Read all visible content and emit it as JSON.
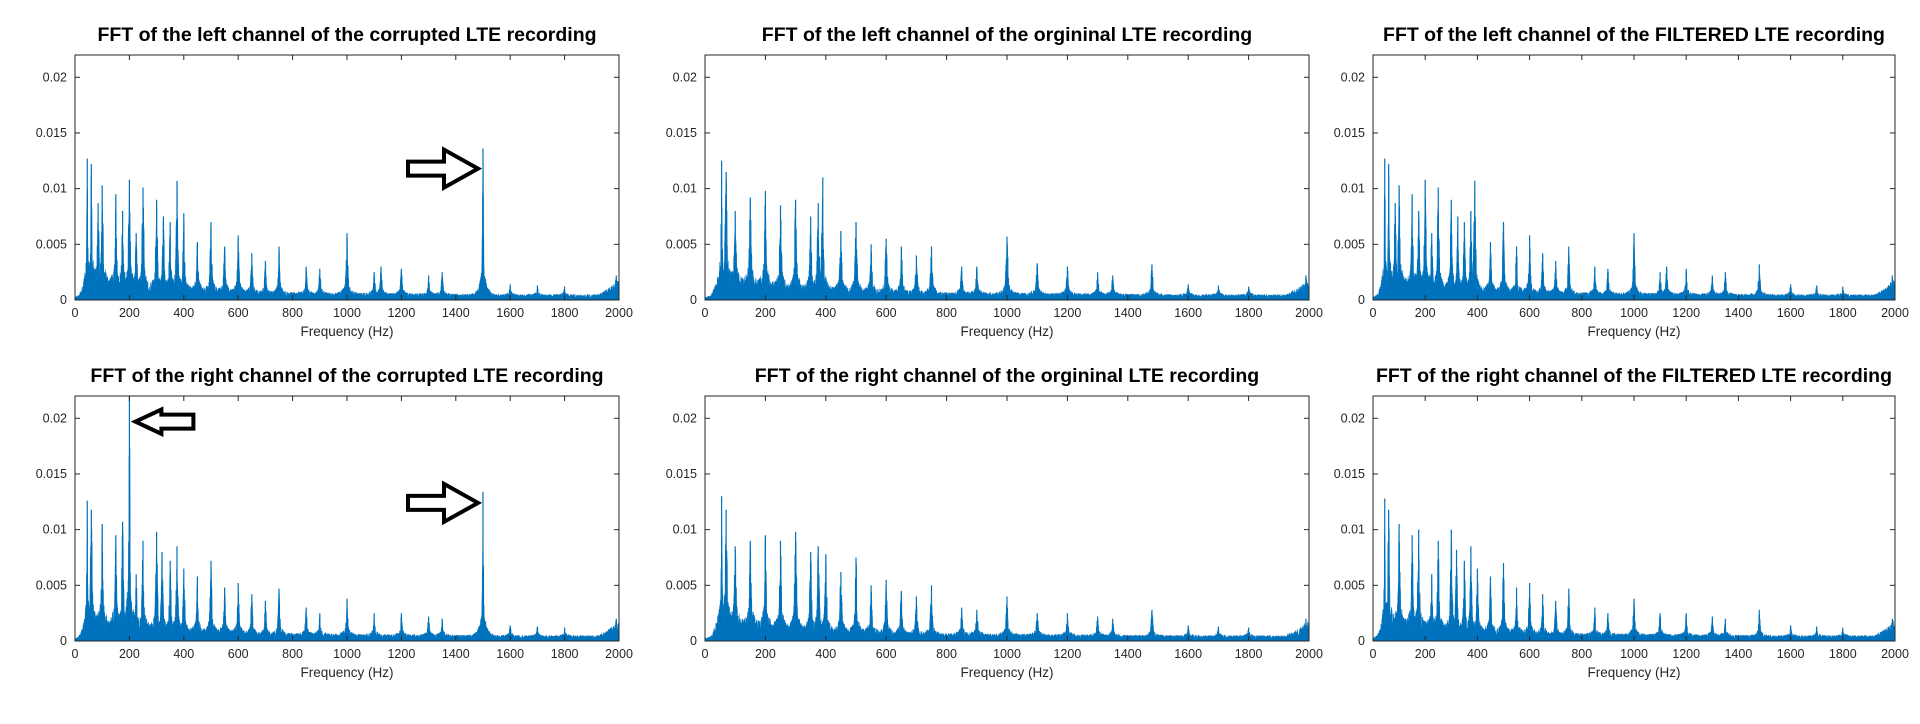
{
  "figure": {
    "background": "#ffffff",
    "series_color": "#0072BD",
    "axis_color": "#262626",
    "arrow_fill": "#ffffff",
    "arrow_stroke": "#000000"
  },
  "chart_data": [
    {
      "id": "left-corrupted",
      "type": "area",
      "title": "FFT of the left channel of the corrupted LTE recording",
      "xlabel": "Frequency (Hz)",
      "ylabel": "",
      "xlim": [
        0,
        2000
      ],
      "ylim": [
        0,
        0.022
      ],
      "xticks": [
        "0",
        "200",
        "400",
        "600",
        "800",
        "1000",
        "1200",
        "1400",
        "1600",
        "1800",
        "2000"
      ],
      "yticks": [
        "0",
        "0.005",
        "0.01",
        "0.015",
        "0.02"
      ],
      "grid": false,
      "annotations": [
        {
          "kind": "arrow",
          "direction": "right",
          "points_to_hz": 1500,
          "at_value": 0.0118
        }
      ],
      "peaks": [
        {
          "hz": 45,
          "value": 0.0127
        },
        {
          "hz": 60,
          "value": 0.0122
        },
        {
          "hz": 85,
          "value": 0.0087
        },
        {
          "hz": 100,
          "value": 0.0103
        },
        {
          "hz": 150,
          "value": 0.0095
        },
        {
          "hz": 175,
          "value": 0.008
        },
        {
          "hz": 200,
          "value": 0.0108
        },
        {
          "hz": 225,
          "value": 0.006
        },
        {
          "hz": 250,
          "value": 0.0101
        },
        {
          "hz": 300,
          "value": 0.009
        },
        {
          "hz": 325,
          "value": 0.0075
        },
        {
          "hz": 350,
          "value": 0.007
        },
        {
          "hz": 375,
          "value": 0.0107
        },
        {
          "hz": 400,
          "value": 0.0078
        },
        {
          "hz": 450,
          "value": 0.0052
        },
        {
          "hz": 500,
          "value": 0.007
        },
        {
          "hz": 550,
          "value": 0.0048
        },
        {
          "hz": 600,
          "value": 0.0058
        },
        {
          "hz": 650,
          "value": 0.0042
        },
        {
          "hz": 700,
          "value": 0.0035
        },
        {
          "hz": 750,
          "value": 0.0048
        },
        {
          "hz": 850,
          "value": 0.003
        },
        {
          "hz": 900,
          "value": 0.0028
        },
        {
          "hz": 1000,
          "value": 0.006
        },
        {
          "hz": 1100,
          "value": 0.0025
        },
        {
          "hz": 1125,
          "value": 0.003
        },
        {
          "hz": 1200,
          "value": 0.0028
        },
        {
          "hz": 1300,
          "value": 0.0022
        },
        {
          "hz": 1350,
          "value": 0.0025
        },
        {
          "hz": 1500,
          "value": 0.0136
        },
        {
          "hz": 1600,
          "value": 0.0014
        },
        {
          "hz": 1700,
          "value": 0.0013
        },
        {
          "hz": 1800,
          "value": 0.0012
        },
        {
          "hz": 1990,
          "value": 0.0022
        }
      ]
    },
    {
      "id": "left-original",
      "type": "area",
      "title": "FFT of the left channel of the orgininal LTE recording",
      "xlabel": "Frequency (Hz)",
      "ylabel": "",
      "xlim": [
        0,
        2000
      ],
      "ylim": [
        0,
        0.022
      ],
      "xticks": [
        "0",
        "200",
        "400",
        "600",
        "800",
        "1000",
        "1200",
        "1400",
        "1600",
        "1800",
        "2000"
      ],
      "yticks": [
        "0",
        "0.005",
        "0.01",
        "0.015",
        "0.02"
      ],
      "grid": false,
      "annotations": [],
      "peaks": [
        {
          "hz": 55,
          "value": 0.0125
        },
        {
          "hz": 70,
          "value": 0.0115
        },
        {
          "hz": 100,
          "value": 0.008
        },
        {
          "hz": 150,
          "value": 0.0092
        },
        {
          "hz": 200,
          "value": 0.0098
        },
        {
          "hz": 250,
          "value": 0.0085
        },
        {
          "hz": 300,
          "value": 0.009
        },
        {
          "hz": 350,
          "value": 0.0075
        },
        {
          "hz": 375,
          "value": 0.0087
        },
        {
          "hz": 390,
          "value": 0.011
        },
        {
          "hz": 450,
          "value": 0.0062
        },
        {
          "hz": 500,
          "value": 0.007
        },
        {
          "hz": 550,
          "value": 0.005
        },
        {
          "hz": 600,
          "value": 0.0055
        },
        {
          "hz": 650,
          "value": 0.0048
        },
        {
          "hz": 700,
          "value": 0.004
        },
        {
          "hz": 750,
          "value": 0.0048
        },
        {
          "hz": 850,
          "value": 0.003
        },
        {
          "hz": 900,
          "value": 0.003
        },
        {
          "hz": 1000,
          "value": 0.0057
        },
        {
          "hz": 1100,
          "value": 0.0033
        },
        {
          "hz": 1200,
          "value": 0.003
        },
        {
          "hz": 1300,
          "value": 0.0025
        },
        {
          "hz": 1350,
          "value": 0.0022
        },
        {
          "hz": 1480,
          "value": 0.0032
        },
        {
          "hz": 1600,
          "value": 0.0014
        },
        {
          "hz": 1700,
          "value": 0.0013
        },
        {
          "hz": 1800,
          "value": 0.0012
        },
        {
          "hz": 1990,
          "value": 0.0022
        }
      ]
    },
    {
      "id": "left-filtered",
      "type": "area",
      "title": "FFT of the left channel of the FILTERED LTE recording",
      "xlabel": "Frequency (Hz)",
      "ylabel": "",
      "xlim": [
        0,
        2000
      ],
      "ylim": [
        0,
        0.022
      ],
      "xticks": [
        "0",
        "200",
        "400",
        "600",
        "800",
        "1000",
        "1200",
        "1400",
        "1600",
        "1800",
        "2000"
      ],
      "yticks": [
        "0",
        "0.005",
        "0.01",
        "0.015",
        "0.02"
      ],
      "grid": false,
      "annotations": [],
      "peaks": [
        {
          "hz": 45,
          "value": 0.0127
        },
        {
          "hz": 60,
          "value": 0.0122
        },
        {
          "hz": 85,
          "value": 0.0087
        },
        {
          "hz": 100,
          "value": 0.0103
        },
        {
          "hz": 150,
          "value": 0.0095
        },
        {
          "hz": 175,
          "value": 0.008
        },
        {
          "hz": 200,
          "value": 0.0108
        },
        {
          "hz": 225,
          "value": 0.006
        },
        {
          "hz": 250,
          "value": 0.0101
        },
        {
          "hz": 300,
          "value": 0.009
        },
        {
          "hz": 325,
          "value": 0.0075
        },
        {
          "hz": 350,
          "value": 0.007
        },
        {
          "hz": 375,
          "value": 0.008
        },
        {
          "hz": 390,
          "value": 0.0107
        },
        {
          "hz": 450,
          "value": 0.0052
        },
        {
          "hz": 500,
          "value": 0.007
        },
        {
          "hz": 550,
          "value": 0.0048
        },
        {
          "hz": 600,
          "value": 0.0058
        },
        {
          "hz": 650,
          "value": 0.0042
        },
        {
          "hz": 700,
          "value": 0.0035
        },
        {
          "hz": 750,
          "value": 0.0048
        },
        {
          "hz": 850,
          "value": 0.003
        },
        {
          "hz": 900,
          "value": 0.0028
        },
        {
          "hz": 1000,
          "value": 0.006
        },
        {
          "hz": 1100,
          "value": 0.0025
        },
        {
          "hz": 1125,
          "value": 0.003
        },
        {
          "hz": 1200,
          "value": 0.0028
        },
        {
          "hz": 1300,
          "value": 0.0022
        },
        {
          "hz": 1350,
          "value": 0.0025
        },
        {
          "hz": 1480,
          "value": 0.0032
        },
        {
          "hz": 1600,
          "value": 0.0014
        },
        {
          "hz": 1700,
          "value": 0.0013
        },
        {
          "hz": 1800,
          "value": 0.0012
        },
        {
          "hz": 1990,
          "value": 0.0022
        }
      ]
    },
    {
      "id": "right-corrupted",
      "type": "area",
      "title": "FFT of the right channel of the corrupted LTE recording",
      "xlabel": "Frequency (Hz)",
      "ylabel": "",
      "xlim": [
        0,
        2000
      ],
      "ylim": [
        0,
        0.022
      ],
      "xticks": [
        "0",
        "200",
        "400",
        "600",
        "800",
        "1000",
        "1200",
        "1400",
        "1600",
        "1800",
        "2000"
      ],
      "yticks": [
        "0",
        "0.005",
        "0.01",
        "0.015",
        "0.02"
      ],
      "grid": false,
      "annotations": [
        {
          "kind": "arrow",
          "direction": "left",
          "points_to_hz": 200,
          "at_value": 0.0197
        },
        {
          "kind": "arrow",
          "direction": "right",
          "points_to_hz": 1500,
          "at_value": 0.0124
        }
      ],
      "peaks": [
        {
          "hz": 45,
          "value": 0.0126
        },
        {
          "hz": 60,
          "value": 0.0118
        },
        {
          "hz": 100,
          "value": 0.0105
        },
        {
          "hz": 150,
          "value": 0.0095
        },
        {
          "hz": 175,
          "value": 0.0107
        },
        {
          "hz": 200,
          "value": 0.024
        },
        {
          "hz": 225,
          "value": 0.006
        },
        {
          "hz": 250,
          "value": 0.009
        },
        {
          "hz": 300,
          "value": 0.0098
        },
        {
          "hz": 320,
          "value": 0.008
        },
        {
          "hz": 350,
          "value": 0.0072
        },
        {
          "hz": 375,
          "value": 0.0085
        },
        {
          "hz": 400,
          "value": 0.0065
        },
        {
          "hz": 450,
          "value": 0.0058
        },
        {
          "hz": 500,
          "value": 0.0072
        },
        {
          "hz": 550,
          "value": 0.0048
        },
        {
          "hz": 600,
          "value": 0.0052
        },
        {
          "hz": 650,
          "value": 0.0042
        },
        {
          "hz": 700,
          "value": 0.0036
        },
        {
          "hz": 750,
          "value": 0.0047
        },
        {
          "hz": 850,
          "value": 0.003
        },
        {
          "hz": 900,
          "value": 0.0025
        },
        {
          "hz": 1000,
          "value": 0.0038
        },
        {
          "hz": 1100,
          "value": 0.0025
        },
        {
          "hz": 1200,
          "value": 0.0025
        },
        {
          "hz": 1300,
          "value": 0.0022
        },
        {
          "hz": 1350,
          "value": 0.002
        },
        {
          "hz": 1500,
          "value": 0.0134
        },
        {
          "hz": 1600,
          "value": 0.0014
        },
        {
          "hz": 1700,
          "value": 0.0013
        },
        {
          "hz": 1800,
          "value": 0.0012
        },
        {
          "hz": 1990,
          "value": 0.002
        }
      ]
    },
    {
      "id": "right-original",
      "type": "area",
      "title": "FFT of the right channel of the orgininal LTE recording",
      "xlabel": "Frequency (Hz)",
      "ylabel": "",
      "xlim": [
        0,
        2000
      ],
      "ylim": [
        0,
        0.022
      ],
      "xticks": [
        "0",
        "200",
        "400",
        "600",
        "800",
        "1000",
        "1200",
        "1400",
        "1600",
        "1800",
        "2000"
      ],
      "yticks": [
        "0",
        "0.005",
        "0.01",
        "0.015",
        "0.02"
      ],
      "grid": false,
      "annotations": [],
      "peaks": [
        {
          "hz": 55,
          "value": 0.013
        },
        {
          "hz": 70,
          "value": 0.0118
        },
        {
          "hz": 100,
          "value": 0.0085
        },
        {
          "hz": 150,
          "value": 0.009
        },
        {
          "hz": 200,
          "value": 0.0095
        },
        {
          "hz": 250,
          "value": 0.009
        },
        {
          "hz": 300,
          "value": 0.0098
        },
        {
          "hz": 350,
          "value": 0.008
        },
        {
          "hz": 375,
          "value": 0.0085
        },
        {
          "hz": 400,
          "value": 0.0078
        },
        {
          "hz": 450,
          "value": 0.0062
        },
        {
          "hz": 500,
          "value": 0.0075
        },
        {
          "hz": 550,
          "value": 0.005
        },
        {
          "hz": 600,
          "value": 0.0055
        },
        {
          "hz": 650,
          "value": 0.0045
        },
        {
          "hz": 700,
          "value": 0.004
        },
        {
          "hz": 750,
          "value": 0.005
        },
        {
          "hz": 850,
          "value": 0.003
        },
        {
          "hz": 900,
          "value": 0.0028
        },
        {
          "hz": 1000,
          "value": 0.004
        },
        {
          "hz": 1100,
          "value": 0.0025
        },
        {
          "hz": 1200,
          "value": 0.0025
        },
        {
          "hz": 1300,
          "value": 0.0022
        },
        {
          "hz": 1350,
          "value": 0.002
        },
        {
          "hz": 1480,
          "value": 0.0028
        },
        {
          "hz": 1600,
          "value": 0.0014
        },
        {
          "hz": 1700,
          "value": 0.0013
        },
        {
          "hz": 1800,
          "value": 0.0012
        },
        {
          "hz": 1990,
          "value": 0.002
        }
      ]
    },
    {
      "id": "right-filtered",
      "type": "area",
      "title": "FFT of the right channel of the FILTERED LTE recording",
      "xlabel": "Frequency (Hz)",
      "ylabel": "",
      "xlim": [
        0,
        2000
      ],
      "ylim": [
        0,
        0.022
      ],
      "xticks": [
        "0",
        "200",
        "400",
        "600",
        "800",
        "1000",
        "1200",
        "1400",
        "1600",
        "1800",
        "2000"
      ],
      "yticks": [
        "0",
        "0.005",
        "0.01",
        "0.015",
        "0.02"
      ],
      "grid": false,
      "annotations": [],
      "peaks": [
        {
          "hz": 45,
          "value": 0.0128
        },
        {
          "hz": 60,
          "value": 0.0118
        },
        {
          "hz": 100,
          "value": 0.0105
        },
        {
          "hz": 150,
          "value": 0.0095
        },
        {
          "hz": 175,
          "value": 0.01
        },
        {
          "hz": 225,
          "value": 0.006
        },
        {
          "hz": 250,
          "value": 0.009
        },
        {
          "hz": 300,
          "value": 0.01
        },
        {
          "hz": 320,
          "value": 0.0082
        },
        {
          "hz": 350,
          "value": 0.0072
        },
        {
          "hz": 375,
          "value": 0.0085
        },
        {
          "hz": 400,
          "value": 0.0065
        },
        {
          "hz": 450,
          "value": 0.0058
        },
        {
          "hz": 500,
          "value": 0.007
        },
        {
          "hz": 550,
          "value": 0.0048
        },
        {
          "hz": 600,
          "value": 0.0052
        },
        {
          "hz": 650,
          "value": 0.0042
        },
        {
          "hz": 700,
          "value": 0.0036
        },
        {
          "hz": 750,
          "value": 0.0047
        },
        {
          "hz": 850,
          "value": 0.003
        },
        {
          "hz": 900,
          "value": 0.0025
        },
        {
          "hz": 1000,
          "value": 0.0038
        },
        {
          "hz": 1100,
          "value": 0.0025
        },
        {
          "hz": 1200,
          "value": 0.0025
        },
        {
          "hz": 1300,
          "value": 0.0022
        },
        {
          "hz": 1350,
          "value": 0.002
        },
        {
          "hz": 1480,
          "value": 0.0028
        },
        {
          "hz": 1600,
          "value": 0.0014
        },
        {
          "hz": 1700,
          "value": 0.0013
        },
        {
          "hz": 1800,
          "value": 0.0012
        },
        {
          "hz": 1990,
          "value": 0.002
        }
      ]
    }
  ]
}
